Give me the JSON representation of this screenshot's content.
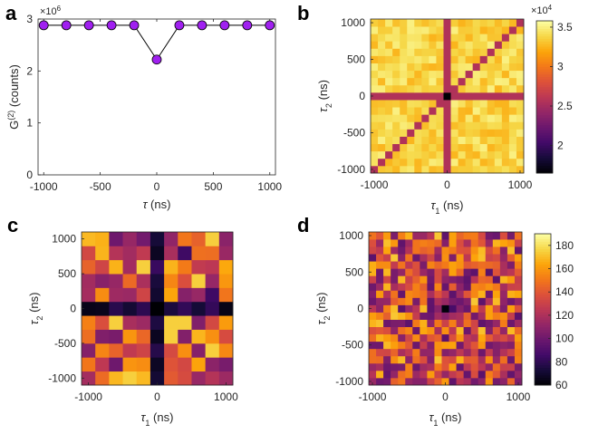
{
  "chart_data": [
    {
      "type": "scatter",
      "panel_label": "a",
      "x": [
        -1000,
        -800,
        -600,
        -400,
        -200,
        0,
        200,
        400,
        600,
        800,
        1000
      ],
      "y": [
        2.88,
        2.88,
        2.88,
        2.88,
        2.88,
        2.22,
        2.88,
        2.88,
        2.88,
        2.88,
        2.88
      ],
      "xlabel_symbol": "τ",
      "xlabel_unit": " (ns)",
      "ylabel_main": "G",
      "ylabel_sup": "(2)",
      "ylabel_unit": " (counts)",
      "y_exponent_base": "×10",
      "y_exponent_power": "6",
      "xlim": [
        -1050,
        1050
      ],
      "ylim": [
        0,
        3
      ],
      "xticks": [
        -1000,
        -500,
        0,
        500,
        1000
      ],
      "yticks": [
        0,
        1,
        2,
        3
      ],
      "marker_color": "#a020f0",
      "line_color": "#000000",
      "grid": false
    },
    {
      "type": "heatmap",
      "panel_label": "b",
      "x": [
        -1000,
        -900,
        -800,
        -700,
        -600,
        -500,
        -400,
        -300,
        -200,
        -100,
        0,
        100,
        200,
        300,
        400,
        500,
        600,
        700,
        800,
        900,
        1000
      ],
      "y": [
        -1000,
        -900,
        -800,
        -700,
        -600,
        -500,
        -400,
        -300,
        -200,
        -100,
        0,
        100,
        200,
        300,
        400,
        500,
        600,
        700,
        800,
        900,
        1000
      ],
      "pattern": "b",
      "values_note": "",
      "xlabel_symbol": "τ",
      "xlabel_sub": "1",
      "xlabel_unit": " (ns)",
      "ylabel_symbol": "τ",
      "ylabel_sub": "2",
      "ylabel_unit": " (ns)",
      "xticks": [
        -1000,
        0,
        1000
      ],
      "yticks": [
        -1000,
        -500,
        0,
        500,
        1000
      ],
      "clim": [
        16500,
        35800
      ],
      "colorbar_ticks": [
        20000,
        25000,
        30000,
        35000
      ],
      "colorbar_ticklabels": [
        "2",
        "2.5",
        "3",
        "3.5"
      ],
      "colorbar_exponent_base": "×10",
      "colorbar_exponent_power": "4",
      "colormap": "inferno"
    },
    {
      "type": "heatmap",
      "panel_label": "c",
      "x": [
        -1000,
        -800,
        -600,
        -400,
        -200,
        0,
        200,
        400,
        600,
        800,
        1000
      ],
      "y": [
        -1000,
        -800,
        -600,
        -400,
        -200,
        0,
        200,
        400,
        600,
        800,
        1000
      ],
      "pattern": "c",
      "xlabel_symbol": "τ",
      "xlabel_sub": "1",
      "xlabel_unit": " (ns)",
      "ylabel_symbol": "τ",
      "ylabel_sub": "2",
      "ylabel_unit": " (ns)",
      "xticks": [
        -1000,
        0,
        1000
      ],
      "yticks": [
        -1000,
        -500,
        0,
        500,
        1000
      ],
      "clim": [
        60,
        190
      ],
      "colormap": "inferno"
    },
    {
      "type": "heatmap",
      "panel_label": "d",
      "x": [
        -1000,
        -900,
        -800,
        -700,
        -600,
        -500,
        -400,
        -300,
        -200,
        -100,
        0,
        100,
        200,
        300,
        400,
        500,
        600,
        700,
        800,
        900,
        1000
      ],
      "y": [
        -1000,
        -900,
        -800,
        -700,
        -600,
        -500,
        -400,
        -300,
        -200,
        -100,
        0,
        100,
        200,
        300,
        400,
        500,
        600,
        700,
        800,
        900,
        1000
      ],
      "pattern": "d",
      "xlabel_symbol": "τ",
      "xlabel_sub": "1",
      "xlabel_unit": " (ns)",
      "ylabel_symbol": "τ",
      "ylabel_sub": "2",
      "ylabel_unit": " (ns)",
      "xticks": [
        -1000,
        0,
        1000
      ],
      "yticks": [
        -1000,
        -500,
        0,
        500,
        1000
      ],
      "clim": [
        60,
        190
      ],
      "colorbar_ticks": [
        60,
        80,
        100,
        120,
        140,
        160,
        180
      ],
      "colorbar_ticklabels": [
        "60",
        "80",
        "100",
        "120",
        "140",
        "160",
        "180"
      ],
      "colormap": "inferno"
    }
  ]
}
